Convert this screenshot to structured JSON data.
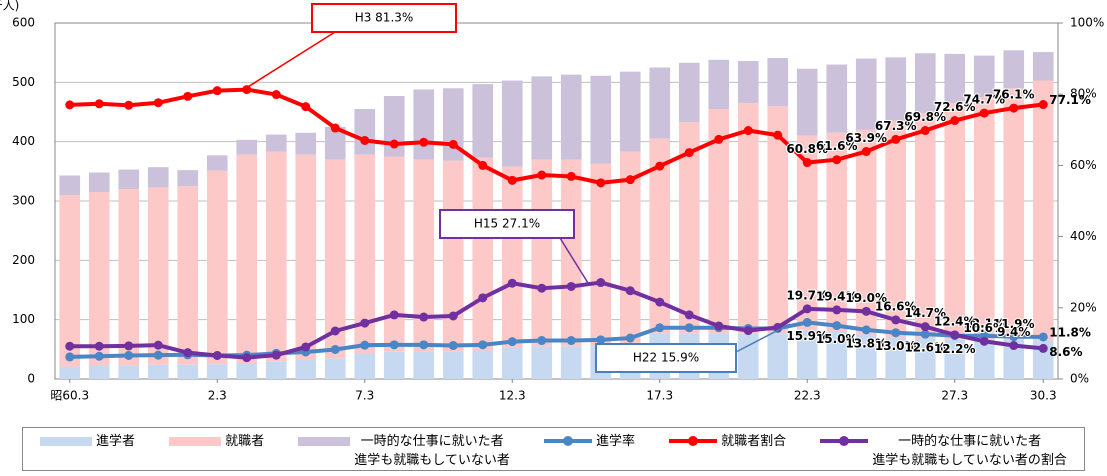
{
  "chart_data": {
    "type": "bar",
    "y_label": "(千人)",
    "categories": [
      "昭60.3",
      null,
      null,
      null,
      null,
      "2.3",
      null,
      null,
      null,
      null,
      "7.3",
      null,
      null,
      null,
      null,
      "12.3",
      null,
      null,
      null,
      null,
      "17.3",
      null,
      null,
      null,
      null,
      "22.3",
      null,
      null,
      null,
      null,
      "27.3",
      null,
      null,
      "30.3"
    ],
    "ylim": [
      0,
      600
    ],
    "yticks": [
      0,
      100,
      200,
      300,
      400,
      500,
      600
    ],
    "y2lim": [
      0,
      100
    ],
    "y2ticks": [
      {
        "value": 0,
        "label": "0%"
      },
      {
        "value": 20,
        "label": "20%"
      },
      {
        "value": 40,
        "label": "40%"
      },
      {
        "value": 60,
        "label": "60%"
      },
      {
        "value": 80,
        "label": "80%"
      },
      {
        "value": 100,
        "label": "100%"
      }
    ],
    "grid": true,
    "stacked": true,
    "series": [
      {
        "name": "進学者",
        "type": "bar",
        "color": "#c6d9f1",
        "values": [
          21,
          22,
          23,
          24,
          24,
          25,
          27,
          30,
          32,
          35,
          43,
          46,
          47,
          46,
          48,
          53,
          55,
          55,
          56,
          60,
          76,
          77,
          77,
          76,
          77,
          83,
          80,
          75,
          70,
          69,
          67,
          66,
          66,
          65
        ]
      },
      {
        "name": "就職者",
        "type": "bar",
        "color": "#fcc8c8",
        "values": [
          289,
          293,
          297,
          299,
          301,
          326,
          351,
          353,
          346,
          335,
          335,
          329,
          323,
          322,
          325,
          305,
          315,
          315,
          307,
          323,
          329,
          356,
          378,
          389,
          383,
          327,
          335,
          345,
          365,
          379,
          398,
          409,
          424,
          438
        ]
      },
      {
        "name": "一時的な仕事に就いた者\n進学も就職もしていない者",
        "type": "bar",
        "color": "#ccc1da",
        "values": [
          33,
          33,
          33,
          34,
          27,
          26,
          25,
          29,
          37,
          55,
          77,
          102,
          118,
          122,
          124,
          145,
          140,
          143,
          148,
          135,
          120,
          100,
          83,
          71,
          81,
          113,
          115,
          120,
          107,
          101,
          83,
          70,
          64,
          48
        ]
      },
      {
        "name": "進学率",
        "type": "line",
        "axis": "y2",
        "color": "#4a86c5",
        "values": [
          6.2,
          6.4,
          6.6,
          6.7,
          6.8,
          6.6,
          6.7,
          7.2,
          7.6,
          8.3,
          9.5,
          9.6,
          9.6,
          9.4,
          9.6,
          10.5,
          10.8,
          10.8,
          11.0,
          11.5,
          14.4,
          14.4,
          14.4,
          14.2,
          14.2,
          15.9,
          15.0,
          13.8,
          13.0,
          12.6,
          12.2,
          12.1,
          11.9,
          11.8
        ],
        "value_labels": [
          null,
          null,
          null,
          null,
          null,
          null,
          null,
          null,
          null,
          null,
          null,
          null,
          null,
          null,
          null,
          null,
          null,
          null,
          null,
          null,
          null,
          null,
          null,
          null,
          null,
          "15.9%",
          "15.0%",
          "13.8%",
          "13.0%",
          "12.6%",
          "12.2%",
          "12.1%",
          "11.9%",
          "11.8%"
        ]
      },
      {
        "name": "就職者割合",
        "type": "line",
        "axis": "y2",
        "color": "#ff0000",
        "values": [
          77.0,
          77.3,
          76.9,
          77.6,
          79.4,
          81.0,
          81.3,
          79.9,
          76.5,
          70.5,
          67.0,
          66.0,
          66.5,
          65.9,
          60.0,
          55.8,
          57.3,
          56.9,
          55.1,
          56.0,
          59.8,
          63.6,
          67.3,
          69.8,
          68.5,
          60.8,
          61.6,
          63.9,
          67.3,
          69.8,
          72.6,
          74.7,
          76.1,
          77.1
        ],
        "value_labels": [
          null,
          null,
          null,
          null,
          null,
          null,
          null,
          null,
          null,
          null,
          null,
          null,
          null,
          null,
          null,
          null,
          null,
          null,
          null,
          null,
          null,
          null,
          null,
          null,
          null,
          "60.8%",
          "61.6%",
          "63.9%",
          "67.3%",
          "69.8%",
          "72.6%",
          "74.7%",
          "76.1%",
          "77.1%"
        ]
      },
      {
        "name": "一時的な仕事に就いた者\n進学も就職もしていない者の割合",
        "type": "line",
        "axis": "y2",
        "color": "#7030a0",
        "values": [
          9.2,
          9.2,
          9.3,
          9.5,
          7.4,
          6.6,
          6.0,
          6.7,
          9.0,
          13.5,
          15.7,
          18.0,
          17.4,
          17.7,
          22.8,
          26.9,
          25.5,
          26.0,
          27.1,
          24.8,
          21.6,
          18.0,
          14.9,
          13.6,
          14.5,
          19.7,
          19.4,
          19.0,
          16.6,
          14.7,
          12.4,
          10.6,
          9.4,
          8.6
        ],
        "value_labels": [
          null,
          null,
          null,
          null,
          null,
          null,
          null,
          null,
          null,
          null,
          null,
          null,
          null,
          null,
          null,
          null,
          null,
          null,
          null,
          null,
          null,
          null,
          null,
          null,
          null,
          "19.7%",
          "19.4%",
          "19.0%",
          "16.6%",
          "14.7%",
          "12.4%",
          "10.6%",
          "9.4%",
          "8.6%"
        ]
      }
    ],
    "annotations": [
      "H3  81.3%",
      "H15  27.1%",
      "H22  15.9%"
    ]
  }
}
